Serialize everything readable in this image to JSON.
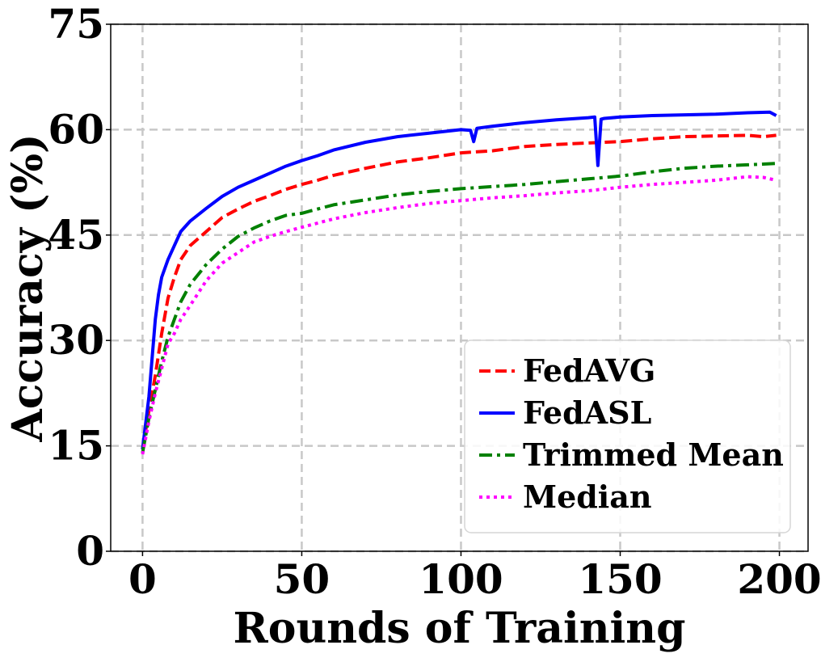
{
  "chart_data": {
    "type": "line",
    "title": "",
    "xlabel": "Rounds of Training",
    "ylabel": "Accuracy (%)",
    "xlim": [
      -10,
      209
    ],
    "ylim": [
      0,
      75
    ],
    "xticks": [
      0,
      50,
      100,
      150,
      200
    ],
    "yticks": [
      0,
      15,
      30,
      45,
      60,
      75
    ],
    "grid": true,
    "legend_position": "lower-right",
    "series": [
      {
        "name": "FedAVG",
        "color": "#ff0000",
        "style": "dashed",
        "x": [
          0,
          2,
          4,
          6,
          8,
          10,
          12,
          15,
          20,
          25,
          30,
          35,
          40,
          45,
          50,
          55,
          60,
          70,
          80,
          90,
          100,
          110,
          120,
          130,
          140,
          150,
          160,
          170,
          180,
          190,
          195,
          199
        ],
        "y": [
          14.5,
          20,
          25,
          31,
          36,
          39,
          41.5,
          43.5,
          45.5,
          47.5,
          48.7,
          49.8,
          50.6,
          51.5,
          52.2,
          52.8,
          53.5,
          54.5,
          55.4,
          56.0,
          56.7,
          57.0,
          57.6,
          57.9,
          58.1,
          58.3,
          58.7,
          59.0,
          59.1,
          59.2,
          59.0,
          59.2
        ]
      },
      {
        "name": "FedASL",
        "color": "#0000ff",
        "style": "solid",
        "x": [
          0,
          2,
          4,
          5,
          6,
          8,
          10,
          12,
          15,
          20,
          25,
          30,
          35,
          40,
          45,
          50,
          55,
          60,
          70,
          80,
          90,
          100,
          103,
          104,
          105,
          110,
          120,
          130,
          140,
          142,
          143,
          144,
          145,
          150,
          160,
          170,
          180,
          190,
          197,
          199
        ],
        "y": [
          14.5,
          22,
          33,
          36.5,
          39,
          41.5,
          43.5,
          45.5,
          47,
          48.8,
          50.5,
          51.8,
          52.8,
          53.8,
          54.8,
          55.6,
          56.3,
          57.1,
          58.2,
          59.0,
          59.5,
          60.0,
          59.9,
          58.3,
          60.2,
          60.5,
          61.0,
          61.4,
          61.7,
          61.8,
          54.9,
          61.5,
          61.6,
          61.8,
          62.0,
          62.1,
          62.2,
          62.4,
          62.5,
          62.0
        ]
      },
      {
        "name": "Trimmed Mean",
        "color": "#008000",
        "style": "dashdot",
        "x": [
          0,
          2,
          4,
          6,
          8,
          10,
          12,
          15,
          20,
          25,
          30,
          35,
          40,
          45,
          50,
          55,
          60,
          70,
          80,
          90,
          100,
          110,
          120,
          130,
          140,
          150,
          160,
          170,
          180,
          190,
          195,
          199
        ],
        "y": [
          14.0,
          19,
          23,
          27,
          30.5,
          33,
          35.5,
          38,
          40.8,
          43,
          44.8,
          46,
          47,
          47.8,
          48.1,
          48.7,
          49.3,
          50.0,
          50.7,
          51.2,
          51.6,
          51.9,
          52.2,
          52.6,
          53.0,
          53.4,
          54.0,
          54.5,
          54.8,
          55.0,
          55.1,
          55.2
        ]
      },
      {
        "name": "Median",
        "color": "#ff00ff",
        "style": "dotted",
        "x": [
          0,
          2,
          4,
          6,
          8,
          10,
          12,
          15,
          20,
          25,
          30,
          35,
          40,
          45,
          50,
          55,
          60,
          70,
          80,
          90,
          100,
          110,
          120,
          130,
          140,
          150,
          160,
          170,
          180,
          190,
          195,
          199
        ],
        "y": [
          13.8,
          18.5,
          22.5,
          26,
          29.5,
          31,
          33,
          35,
          38.5,
          41,
          42.5,
          44,
          44.8,
          45.5,
          46.1,
          46.7,
          47.3,
          48.2,
          48.9,
          49.5,
          49.9,
          50.3,
          50.6,
          51.0,
          51.3,
          51.8,
          52.2,
          52.5,
          52.8,
          53.3,
          53.2,
          52.8
        ]
      }
    ]
  }
}
